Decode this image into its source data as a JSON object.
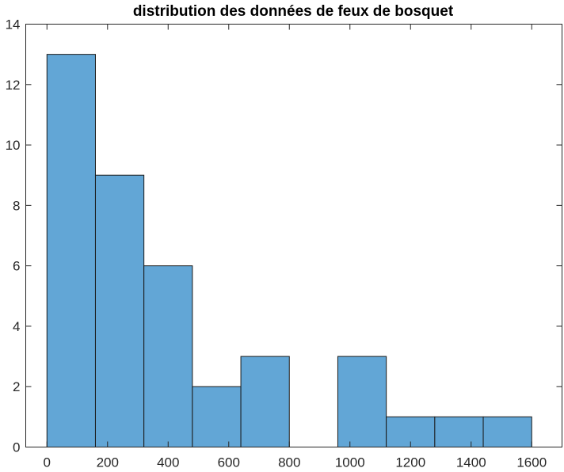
{
  "chart_data": {
    "type": "bar",
    "title": "distribution des données de feux de bosquet",
    "xlabel": "",
    "ylabel": "",
    "xlim": [
      -70,
      1700
    ],
    "ylim": [
      0,
      14
    ],
    "grid": false,
    "bins": [
      {
        "x0": 0,
        "x1": 160,
        "count": 13
      },
      {
        "x0": 160,
        "x1": 320,
        "count": 9
      },
      {
        "x0": 320,
        "x1": 480,
        "count": 6
      },
      {
        "x0": 480,
        "x1": 640,
        "count": 2
      },
      {
        "x0": 640,
        "x1": 800,
        "count": 3
      },
      {
        "x0": 800,
        "x1": 960,
        "count": 0
      },
      {
        "x0": 960,
        "x1": 1120,
        "count": 3
      },
      {
        "x0": 1120,
        "x1": 1280,
        "count": 1
      },
      {
        "x0": 1280,
        "x1": 1440,
        "count": 1
      },
      {
        "x0": 1440,
        "x1": 1600,
        "count": 1
      }
    ],
    "xticks": [
      0,
      200,
      400,
      600,
      800,
      1000,
      1200,
      1400,
      1600
    ],
    "yticks": [
      0,
      2,
      4,
      6,
      8,
      10,
      12,
      14
    ],
    "bar_color": "#62a6d6",
    "edge_color": "#1a1a1a"
  }
}
